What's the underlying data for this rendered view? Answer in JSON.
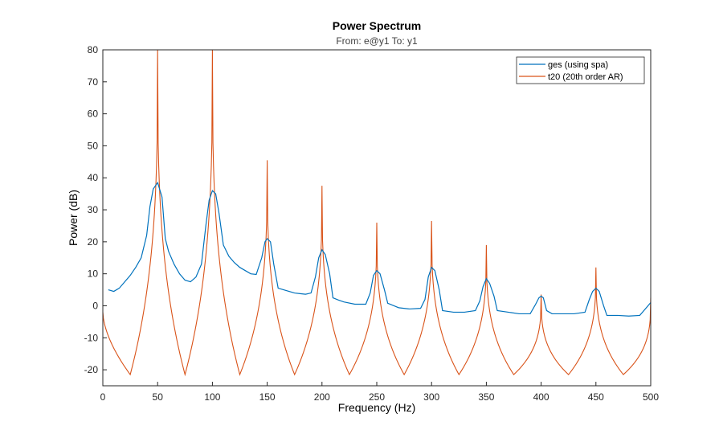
{
  "chart_data": {
    "type": "line",
    "title": "Power Spectrum",
    "subtitle": "From: e@y1  To: y1",
    "xlabel": "Frequency  (Hz)",
    "ylabel": "Power (dB)",
    "xlim": [
      0,
      500
    ],
    "ylim": [
      -25,
      80
    ],
    "xticks": [
      0,
      50,
      100,
      150,
      200,
      250,
      300,
      350,
      400,
      450,
      500
    ],
    "yticks": [
      -20,
      -10,
      0,
      10,
      20,
      30,
      40,
      50,
      60,
      70,
      80
    ],
    "grid": false,
    "legend_position": "top-right",
    "series": [
      {
        "name": "ges (using spa)",
        "color": "#0072BD",
        "x": [
          5,
          10,
          15,
          20,
          25,
          30,
          35,
          40,
          43,
          46,
          50,
          54,
          57,
          60,
          65,
          70,
          75,
          80,
          85,
          90,
          94,
          97,
          100,
          103,
          106,
          110,
          115,
          120,
          125,
          130,
          135,
          140,
          145,
          148,
          150,
          153,
          156,
          160,
          165,
          170,
          175,
          180,
          185,
          190,
          194,
          197,
          200,
          203,
          207,
          210,
          215,
          220,
          230,
          240,
          244,
          247,
          250,
          253,
          257,
          260,
          270,
          280,
          290,
          294,
          297,
          300,
          303,
          307,
          310,
          320,
          330,
          340,
          344,
          347,
          350,
          353,
          357,
          360,
          370,
          380,
          390,
          395,
          398,
          400,
          402,
          405,
          410,
          420,
          430,
          440,
          444,
          447,
          450,
          453,
          457,
          460,
          470,
          480,
          490,
          495,
          500
        ],
        "y": [
          5,
          4.5,
          5.5,
          7.5,
          9.5,
          12,
          15,
          22,
          31,
          36.5,
          38.5,
          34,
          21,
          17,
          13,
          10,
          8,
          7.5,
          9,
          13,
          25,
          33,
          36,
          35,
          29,
          19,
          15.5,
          13.5,
          12,
          11,
          10,
          9.8,
          15,
          20,
          21,
          20,
          13,
          5.5,
          5,
          4.5,
          4,
          3.8,
          3.6,
          4,
          9,
          15,
          17.5,
          16,
          10,
          2.5,
          1.8,
          1.2,
          0.5,
          0.5,
          4,
          9.5,
          11,
          10,
          5,
          0.8,
          -0.6,
          -1,
          -0.8,
          2,
          9,
          12,
          11,
          5,
          -1.5,
          -2,
          -2,
          -1.5,
          1.5,
          6,
          8.5,
          7,
          3,
          -1.5,
          -2,
          -2.5,
          -2.5,
          0.5,
          2.5,
          3,
          2.5,
          -1.5,
          -2.5,
          -2.5,
          -2.5,
          -2,
          2,
          4.5,
          5.5,
          4.5,
          0,
          -3,
          -3,
          -3.2,
          -3,
          -1,
          1
        ]
      },
      {
        "name": "t20 (20th order AR)",
        "color": "#D95319",
        "peaks": [
          {
            "freq": 50,
            "power": 80
          },
          {
            "freq": 100,
            "power": 80
          },
          {
            "freq": 150,
            "power": 45.5
          },
          {
            "freq": 200,
            "power": 37.5
          },
          {
            "freq": 250,
            "power": 26
          },
          {
            "freq": 300,
            "power": 26.5
          },
          {
            "freq": 350,
            "power": 19
          },
          {
            "freq": 400,
            "power": 3.5
          },
          {
            "freq": 450,
            "power": 12
          },
          {
            "freq": 500,
            "power": 2.5
          }
        ],
        "trough_power": -21.5,
        "start_power": -2
      }
    ]
  }
}
